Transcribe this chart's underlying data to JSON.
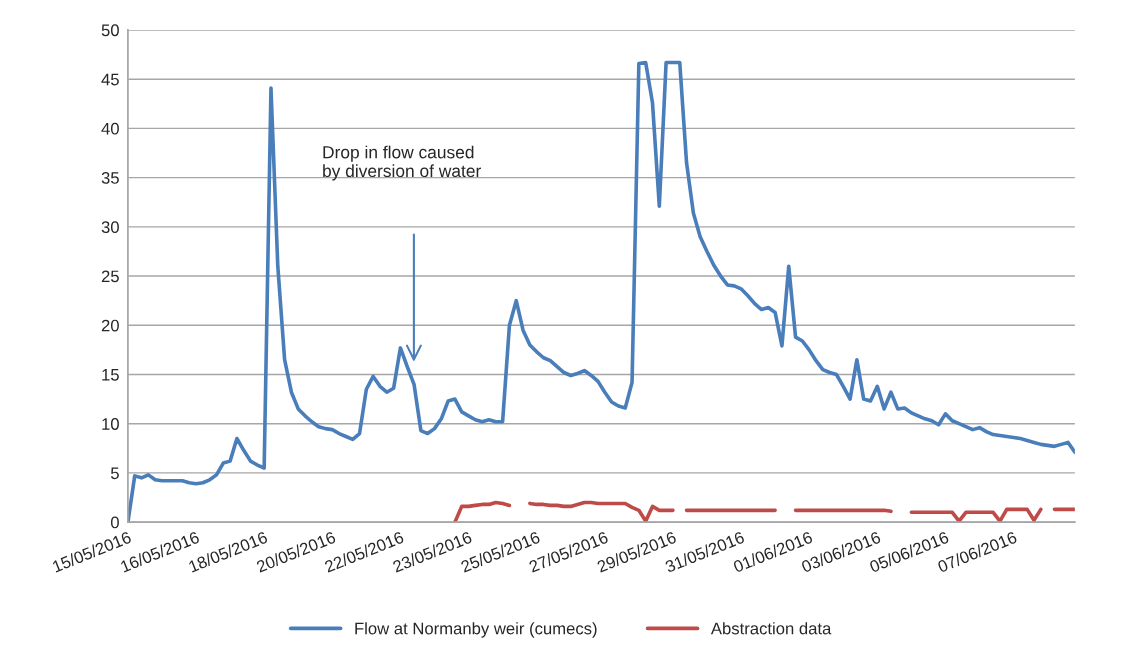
{
  "chart_data": {
    "type": "line",
    "categories": [
      "15/05/2016",
      null,
      null,
      null,
      null,
      null,
      null,
      null,
      null,
      null,
      "16/05/2016",
      null,
      null,
      null,
      null,
      null,
      null,
      null,
      null,
      null,
      "18/05/2016",
      null,
      null,
      null,
      null,
      null,
      null,
      null,
      null,
      null,
      "20/05/2016",
      null,
      null,
      null,
      null,
      null,
      null,
      null,
      null,
      null,
      "22/05/2016",
      null,
      null,
      null,
      null,
      null,
      null,
      null,
      null,
      null,
      "23/05/2016",
      null,
      null,
      null,
      null,
      null,
      null,
      null,
      null,
      null,
      "25/05/2016",
      null,
      null,
      null,
      null,
      null,
      null,
      null,
      null,
      null,
      "27/05/2016",
      null,
      null,
      null,
      null,
      null,
      null,
      null,
      null,
      null,
      "29/05/2016",
      null,
      null,
      null,
      null,
      null,
      null,
      null,
      null,
      null,
      "31/05/2016",
      null,
      null,
      null,
      null,
      null,
      null,
      null,
      null,
      null,
      "01/06/2016",
      null,
      null,
      null,
      null,
      null,
      null,
      null,
      null,
      null,
      "03/06/2016",
      null,
      null,
      null,
      null,
      null,
      null,
      null,
      null,
      null,
      "05/06/2016",
      null,
      null,
      null,
      null,
      null,
      null,
      null,
      null,
      null,
      "07/06/2016",
      null,
      null,
      null,
      null,
      null,
      null,
      null,
      null,
      null
    ],
    "ylim": [
      0,
      50
    ],
    "yticks": [
      0,
      5,
      10,
      15,
      20,
      25,
      30,
      35,
      40,
      45,
      50
    ],
    "grid": "y",
    "legend": "bottom",
    "annotations": [
      "Drop in flow caused\nby diversion of water"
    ],
    "series": [
      {
        "name": "Flow at Normanby weir (cumecs)",
        "color": "#4a7ebb",
        "values": [
          0,
          4.7,
          4.5,
          4.8,
          4.3,
          4.2,
          4.2,
          4.2,
          4.2,
          4.0,
          3.9,
          4.0,
          4.3,
          4.8,
          6.0,
          6.2,
          8.5,
          7.3,
          6.2,
          5.8,
          5.5,
          44.1,
          26,
          16.5,
          13.2,
          11.5,
          10.8,
          10.2,
          9.7,
          9.5,
          9.4,
          9.0,
          8.7,
          8.4,
          9.0,
          13.5,
          14.8,
          13.8,
          13.2,
          13.6,
          17.7,
          15.8,
          14.0,
          9.3,
          9.0,
          9.5,
          10.5,
          12.3,
          12.5,
          11.2,
          10.8,
          10.4,
          10.2,
          10.4,
          10.2,
          10.2,
          20.0,
          22.5,
          19.5,
          18.0,
          17.3,
          16.7,
          16.4,
          15.8,
          15.2,
          14.9,
          15.1,
          15.4,
          14.9,
          14.3,
          13.2,
          12.2,
          11.8,
          11.6,
          14.2,
          46.6,
          46.7,
          42.6,
          32.1,
          46.7,
          46.7,
          46.7,
          36.5,
          31.4,
          29,
          27.5,
          26.1,
          25,
          24.1,
          24.0,
          23.7,
          23.0,
          22.2,
          21.6,
          21.8,
          21.3,
          17.9,
          26.0,
          18.8,
          18.4,
          17.5,
          16.4,
          15.5,
          15.2,
          15.0,
          13.8,
          12.5,
          16.5,
          12.5,
          12.3,
          13.8,
          11.5,
          13.2,
          11.5,
          11.6,
          11.1,
          10.8,
          10.5,
          10.3,
          9.9,
          11.0,
          10.3,
          10.0,
          9.7,
          9.4,
          9.6,
          9.2,
          8.9,
          8.8,
          8.7,
          8.6,
          8.5,
          8.3,
          8.1,
          7.9,
          7.8,
          7.7,
          7.9,
          8.1,
          7.1
        ]
      },
      {
        "name": "Abstraction data",
        "color": "#be4b48",
        "values": [
          null,
          null,
          null,
          null,
          null,
          null,
          null,
          null,
          null,
          null,
          null,
          null,
          null,
          null,
          null,
          null,
          null,
          null,
          null,
          null,
          null,
          null,
          null,
          null,
          null,
          null,
          null,
          null,
          null,
          null,
          null,
          null,
          null,
          null,
          null,
          null,
          null,
          null,
          null,
          null,
          null,
          null,
          null,
          null,
          null,
          null,
          null,
          null,
          0,
          1.6,
          1.6,
          1.7,
          1.8,
          1.8,
          2.0,
          1.9,
          1.7,
          null,
          null,
          1.9,
          1.8,
          1.8,
          1.7,
          1.7,
          1.6,
          1.6,
          1.8,
          2.0,
          2.0,
          1.9,
          1.9,
          1.9,
          1.9,
          1.9,
          1.5,
          1.2,
          0.1,
          1.6,
          1.2,
          1.2,
          1.2,
          null,
          1.2,
          1.2,
          1.2,
          1.2,
          1.2,
          1.2,
          1.2,
          1.2,
          1.2,
          1.2,
          1.2,
          1.2,
          1.2,
          1.2,
          null,
          null,
          1.2,
          1.2,
          1.2,
          1.2,
          1.2,
          1.2,
          1.2,
          1.2,
          1.2,
          1.2,
          1.2,
          1.2,
          1.2,
          1.2,
          1.1,
          null,
          null,
          1.0,
          1.0,
          1.0,
          1.0,
          1.0,
          1.0,
          1.0,
          0.1,
          1.0,
          1.0,
          1.0,
          1.0,
          1.0,
          0.1,
          1.3,
          1.3,
          1.3,
          1.3,
          0.2,
          1.3,
          null,
          1.3,
          1.3,
          1.3,
          1.3
        ]
      }
    ]
  }
}
